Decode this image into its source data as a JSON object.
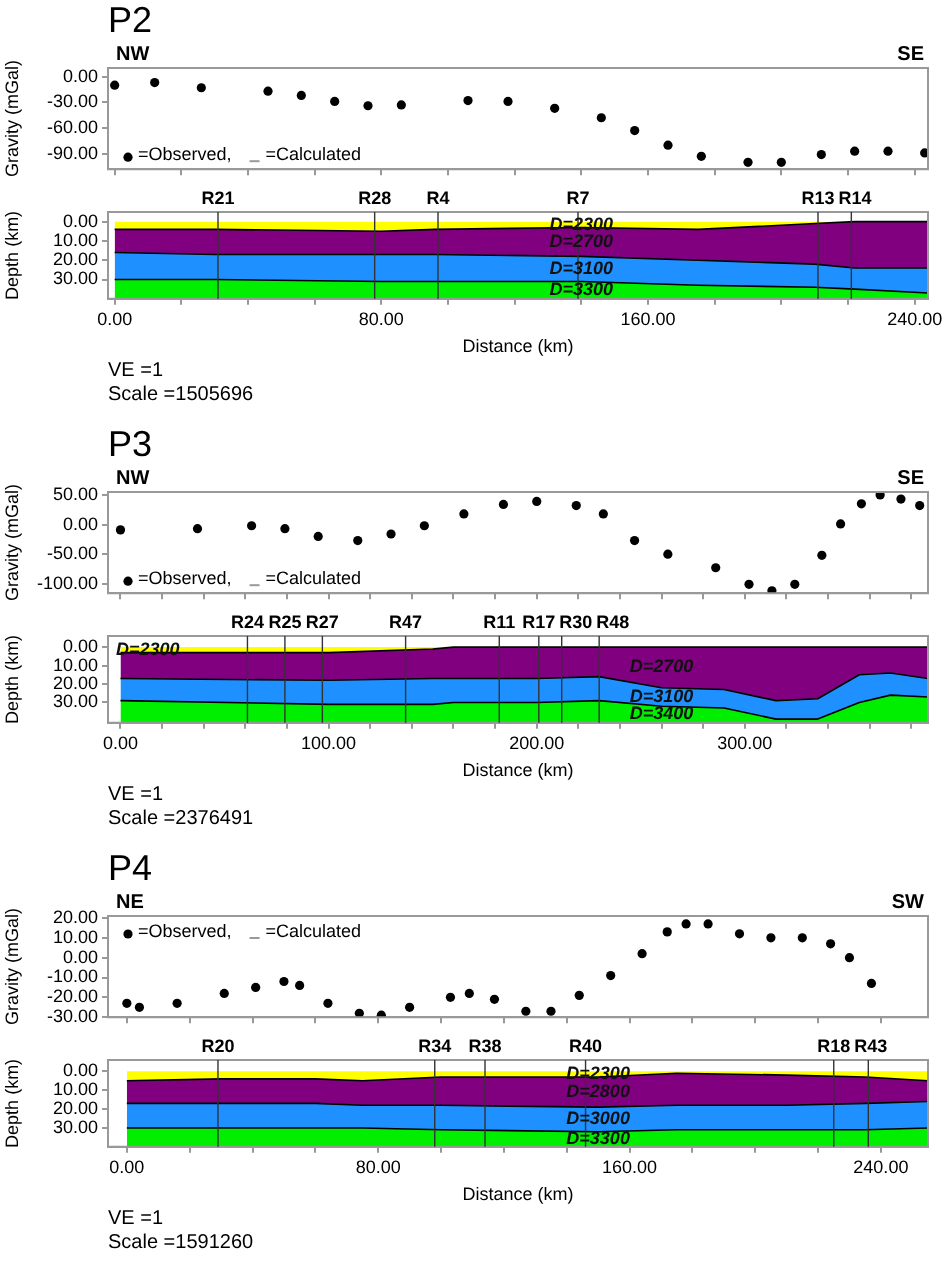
{
  "chart_data": [
    {
      "type": "scatter",
      "title": "P2",
      "ylabel": "Gravity (mGal)",
      "annotations": [
        "NW",
        "SE",
        "=Calculated"
      ],
      "x": [
        0,
        12,
        26,
        46,
        56,
        66,
        76,
        86,
        106,
        118,
        132,
        146,
        156,
        166,
        176,
        190,
        200,
        212,
        222,
        232,
        243
      ],
      "series": [
        {
          "name": "=Observed,",
          "color": "#000000",
          "values": [
            -10,
            -7,
            -13,
            -17,
            -22,
            -29,
            -34,
            -33,
            -28,
            -29,
            -37,
            -48,
            -63,
            -80,
            -93,
            -100,
            -100,
            -91,
            -87,
            -87,
            -89
          ]
        }
      ],
      "marker": "circle",
      "legend": "bottom left",
      "tick_labels": "y",
      "xlim": [
        -2,
        244
      ],
      "xticks": [
        {
          "value": 0,
          "label": null
        },
        {
          "value": 20,
          "label": null
        },
        {
          "value": 40,
          "label": null
        },
        {
          "value": 60,
          "label": null
        },
        {
          "value": 80,
          "label": null
        },
        {
          "value": 100,
          "label": null
        },
        {
          "value": 120,
          "label": null
        },
        {
          "value": 140,
          "label": null
        },
        {
          "value": 160,
          "label": null
        },
        {
          "value": 180,
          "label": null
        },
        {
          "value": 200,
          "label": null
        },
        {
          "value": 220,
          "label": null
        },
        {
          "value": 240,
          "label": null
        }
      ],
      "ylim": [
        -108,
        10
      ],
      "yticks": [
        {
          "value": 0,
          "label": "0.00"
        },
        {
          "value": -30,
          "label": "-30.00"
        },
        {
          "value": -60,
          "label": "-60.00"
        },
        {
          "value": -90,
          "label": "-90.00"
        }
      ]
    },
    {
      "type": "area",
      "stacked": true,
      "xlabel": "Distance (km)",
      "ylabel": "Depth (km)",
      "annotations": [
        "VE =1",
        "Scale =1505696"
      ],
      "x": [
        0,
        30,
        80,
        96,
        140,
        175,
        210,
        222,
        244
      ],
      "series": [
        {
          "name": "D=2300",
          "color": "#ffff00",
          "values": [
            4,
            4,
            5,
            4,
            3,
            4,
            1,
            0,
            0
          ]
        },
        {
          "name": "D=2700",
          "color": "#800080",
          "values": [
            12,
            13,
            12,
            13,
            15,
            16,
            21,
            24,
            24
          ]
        },
        {
          "name": "D=3100",
          "color": "#1e90ff",
          "values": [
            14,
            13,
            14,
            14,
            13,
            13,
            12,
            11,
            13
          ]
        },
        {
          "name": "D=3300",
          "color": "#00ee00",
          "values": [
            10,
            10,
            9,
            9,
            9,
            7,
            6,
            5,
            3
          ]
        }
      ],
      "xlim": [
        -2,
        244
      ],
      "xticks": [
        {
          "value": 0,
          "label": "0.00"
        },
        {
          "value": 20,
          "label": null
        },
        {
          "value": 40,
          "label": null
        },
        {
          "value": 60,
          "label": null
        },
        {
          "value": 80,
          "label": "80.00"
        },
        {
          "value": 100,
          "label": null
        },
        {
          "value": 120,
          "label": null
        },
        {
          "value": 140,
          "label": null
        },
        {
          "value": 160,
          "label": "160.00"
        },
        {
          "value": 180,
          "label": null
        },
        {
          "value": 200,
          "label": null
        },
        {
          "value": 220,
          "label": null
        },
        {
          "value": 240,
          "label": "240.00"
        }
      ],
      "ylim": [
        40,
        -5
      ],
      "yticks": [
        {
          "value": 0,
          "label": "0.00"
        },
        {
          "value": 10,
          "label": "10.00"
        },
        {
          "value": 20,
          "label": "20.00"
        },
        {
          "value": 30,
          "label": "30.00"
        }
      ],
      "ref_lines": [
        {
          "axis": "x",
          "value": 31,
          "label": "R21",
          "color": "#333333"
        },
        {
          "axis": "x",
          "value": 78,
          "label": "R28",
          "color": "#333333"
        },
        {
          "axis": "x",
          "value": 97,
          "label": "R4",
          "color": "#333333"
        },
        {
          "axis": "x",
          "value": 139,
          "label": "R7",
          "color": "#333333"
        },
        {
          "axis": "x",
          "value": 211,
          "label": "R13",
          "color": "#333333"
        },
        {
          "axis": "x",
          "value": 221,
          "label": "R14",
          "color": "#333333"
        }
      ]
    },
    {
      "type": "scatter",
      "title": "P3",
      "ylabel": "Gravity (mGal)",
      "annotations": [
        "NW",
        "SE",
        "=Calculated"
      ],
      "x": [
        0,
        37,
        63,
        79,
        95,
        114,
        130,
        146,
        165,
        184,
        200,
        219,
        232,
        247,
        263,
        286,
        302,
        313,
        324,
        337,
        346,
        356,
        365,
        375,
        384
      ],
      "series": [
        {
          "name": "=Observed,",
          "color": "#000000",
          "values": [
            -9,
            -7,
            -2,
            -7,
            -20,
            -27,
            -16,
            -2,
            18,
            34,
            39,
            32,
            18,
            -27,
            -50,
            -73,
            -101,
            -112,
            -101,
            -52,
            1,
            35,
            50,
            43,
            32
          ]
        }
      ],
      "marker": "circle",
      "legend": "bottom left",
      "tick_labels": "y",
      "xlim": [
        -6,
        388
      ],
      "xticks": [
        {
          "value": 0,
          "label": null
        },
        {
          "value": 20,
          "label": null
        },
        {
          "value": 40,
          "label": null
        },
        {
          "value": 60,
          "label": null
        },
        {
          "value": 80,
          "label": null
        },
        {
          "value": 100,
          "label": null
        },
        {
          "value": 120,
          "label": null
        },
        {
          "value": 140,
          "label": null
        },
        {
          "value": 160,
          "label": null
        },
        {
          "value": 180,
          "label": null
        },
        {
          "value": 200,
          "label": null
        },
        {
          "value": 220,
          "label": null
        },
        {
          "value": 240,
          "label": null
        },
        {
          "value": 260,
          "label": null
        },
        {
          "value": 280,
          "label": null
        },
        {
          "value": 300,
          "label": null
        },
        {
          "value": 320,
          "label": null
        },
        {
          "value": 340,
          "label": null
        },
        {
          "value": 360,
          "label": null
        },
        {
          "value": 380,
          "label": null
        }
      ],
      "ylim": [
        -116,
        55
      ],
      "yticks": [
        {
          "value": 50,
          "label": "50.00"
        },
        {
          "value": 0,
          "label": "0.00"
        },
        {
          "value": -50,
          "label": "-50.00"
        },
        {
          "value": -100,
          "label": "-100.00"
        }
      ]
    },
    {
      "type": "area",
      "stacked": true,
      "xlabel": "Distance (km)",
      "ylabel": "Depth (km)",
      "annotations": [
        "VE =1",
        "Scale =2376491"
      ],
      "x": [
        0,
        100,
        150,
        160,
        200,
        230,
        260,
        290,
        315,
        335,
        355,
        370,
        388
      ],
      "series": [
        {
          "name": "D=2300",
          "color": "#ffff00",
          "values": [
            3,
            3,
            1,
            0,
            0,
            0,
            0,
            0,
            0,
            0,
            0,
            0,
            0
          ]
        },
        {
          "name": "D=2700",
          "color": "#800080",
          "values": [
            14,
            15,
            16,
            17,
            17,
            16,
            22,
            23,
            29,
            28,
            15,
            14,
            17
          ]
        },
        {
          "name": "D=3100",
          "color": "#1e90ff",
          "values": [
            12,
            13,
            14,
            13,
            13,
            13,
            10,
            10,
            10,
            11,
            15,
            12,
            10
          ]
        },
        {
          "name": "D=3400",
          "color": "#00ee00",
          "values": [
            12,
            10,
            10,
            11,
            11,
            12,
            9,
            8,
            2,
            2,
            11,
            15,
            14
          ]
        }
      ],
      "xlim": [
        -6,
        388
      ],
      "xticks": [
        {
          "value": 0,
          "label": "0.00"
        },
        {
          "value": 20,
          "label": null
        },
        {
          "value": 40,
          "label": null
        },
        {
          "value": 60,
          "label": null
        },
        {
          "value": 80,
          "label": null
        },
        {
          "value": 100,
          "label": "100.00"
        },
        {
          "value": 120,
          "label": null
        },
        {
          "value": 140,
          "label": null
        },
        {
          "value": 160,
          "label": null
        },
        {
          "value": 180,
          "label": null
        },
        {
          "value": 200,
          "label": "200.00"
        },
        {
          "value": 220,
          "label": null
        },
        {
          "value": 240,
          "label": null
        },
        {
          "value": 260,
          "label": null
        },
        {
          "value": 280,
          "label": null
        },
        {
          "value": 300,
          "label": "300.00"
        },
        {
          "value": 320,
          "label": null
        },
        {
          "value": 340,
          "label": null
        },
        {
          "value": 360,
          "label": null
        },
        {
          "value": 380,
          "label": null
        }
      ],
      "ylim": [
        41,
        -6
      ],
      "yticks": [
        {
          "value": 0,
          "label": "0.00"
        },
        {
          "value": 10,
          "label": "10.00"
        },
        {
          "value": 20,
          "label": "20.00"
        },
        {
          "value": 30,
          "label": "30.00"
        }
      ],
      "ref_lines": [
        {
          "axis": "x",
          "value": 61,
          "label": "R24",
          "color": "#333333"
        },
        {
          "axis": "x",
          "value": 79,
          "label": "R25",
          "color": "#333333"
        },
        {
          "axis": "x",
          "value": 97,
          "label": "R27",
          "color": "#333333"
        },
        {
          "axis": "x",
          "value": 137,
          "label": "R47",
          "color": "#333333"
        },
        {
          "axis": "x",
          "value": 182,
          "label": "R11",
          "color": "#333333"
        },
        {
          "axis": "x",
          "value": 201,
          "label": "R17",
          "color": "#333333"
        },
        {
          "axis": "x",
          "value": 212,
          "label": "R30",
          "color": "#333333"
        },
        {
          "axis": "x",
          "value": 230,
          "label": "R48",
          "color": "#333333"
        }
      ]
    },
    {
      "type": "scatter",
      "title": "P4",
      "ylabel": "Gravity (mGal)",
      "annotations": [
        "NE",
        "SW",
        "=Calculated"
      ],
      "x": [
        0,
        4,
        16,
        31,
        41,
        50,
        55,
        64,
        74,
        81,
        90,
        103,
        109,
        117,
        127,
        135,
        144,
        154,
        164,
        172,
        178,
        185,
        195,
        205,
        215,
        224,
        230,
        237
      ],
      "series": [
        {
          "name": "=Observed,",
          "color": "#000000",
          "values": [
            -23,
            -25,
            -23,
            -18,
            -15,
            -12,
            -14,
            -23,
            -28,
            -29,
            -25,
            -20,
            -18,
            -21,
            -27,
            -27,
            -19,
            -9,
            2,
            13,
            17,
            17,
            12,
            10,
            10,
            7,
            0,
            -13
          ]
        }
      ],
      "marker": "circle",
      "legend": "top left",
      "tick_labels": "y",
      "xlim": [
        -6,
        255
      ],
      "xticks": [
        {
          "value": 0,
          "label": null
        },
        {
          "value": 20,
          "label": null
        },
        {
          "value": 40,
          "label": null
        },
        {
          "value": 60,
          "label": null
        },
        {
          "value": 80,
          "label": null
        },
        {
          "value": 100,
          "label": null
        },
        {
          "value": 120,
          "label": null
        },
        {
          "value": 140,
          "label": null
        },
        {
          "value": 160,
          "label": null
        },
        {
          "value": 180,
          "label": null
        },
        {
          "value": 200,
          "label": null
        },
        {
          "value": 220,
          "label": null
        },
        {
          "value": 240,
          "label": null
        }
      ],
      "ylim": [
        -30,
        21
      ],
      "yticks": [
        {
          "value": 20,
          "label": "20.00"
        },
        {
          "value": 10,
          "label": "10.00"
        },
        {
          "value": 0,
          "label": "0.00"
        },
        {
          "value": -10,
          "label": "-10.00"
        },
        {
          "value": -20,
          "label": "-20.00"
        },
        {
          "value": -30,
          "label": "-30.00"
        }
      ]
    },
    {
      "type": "area",
      "stacked": true,
      "xlabel": "Distance (km)",
      "ylabel": "Depth (km)",
      "annotations": [
        "VE =1",
        "Scale =1591260"
      ],
      "x": [
        0,
        30,
        60,
        75,
        100,
        150,
        175,
        210,
        235,
        255
      ],
      "series": [
        {
          "name": "D=2300",
          "color": "#ffff00",
          "values": [
            5,
            4,
            4,
            5,
            3,
            3,
            1,
            2,
            3,
            5
          ]
        },
        {
          "name": "D=2800",
          "color": "#800080",
          "values": [
            12,
            13,
            13,
            13,
            15,
            16,
            17,
            16,
            14,
            11
          ]
        },
        {
          "name": "D=3000",
          "color": "#1e90ff",
          "values": [
            13,
            13,
            13,
            12,
            13,
            13,
            13,
            13,
            14,
            14
          ]
        },
        {
          "name": "D=3300",
          "color": "#00ee00",
          "values": [
            10,
            10,
            10,
            10,
            9,
            8,
            9,
            9,
            9,
            10
          ]
        }
      ],
      "xlim": [
        -6,
        255
      ],
      "xticks": [
        {
          "value": 0,
          "label": "0.00"
        },
        {
          "value": 20,
          "label": null
        },
        {
          "value": 40,
          "label": null
        },
        {
          "value": 60,
          "label": null
        },
        {
          "value": 80,
          "label": "80.00"
        },
        {
          "value": 100,
          "label": null
        },
        {
          "value": 120,
          "label": null
        },
        {
          "value": 140,
          "label": null
        },
        {
          "value": 160,
          "label": "160.00"
        },
        {
          "value": 180,
          "label": null
        },
        {
          "value": 200,
          "label": null
        },
        {
          "value": 220,
          "label": null
        },
        {
          "value": 240,
          "label": "240.00"
        }
      ],
      "ylim": [
        40,
        -6
      ],
      "yticks": [
        {
          "value": 0,
          "label": "0.00"
        },
        {
          "value": 10,
          "label": "10.00"
        },
        {
          "value": 20,
          "label": "20.00"
        },
        {
          "value": 30,
          "label": "30.00"
        }
      ],
      "ref_lines": [
        {
          "axis": "x",
          "value": 29,
          "label": "R20",
          "color": "#333333"
        },
        {
          "axis": "x",
          "value": 98,
          "label": "R34",
          "color": "#333333"
        },
        {
          "axis": "x",
          "value": 114,
          "label": "R38",
          "color": "#333333"
        },
        {
          "axis": "x",
          "value": 146,
          "label": "R40",
          "color": "#333333"
        },
        {
          "axis": "x",
          "value": 225,
          "label": "R18",
          "color": "#333333"
        },
        {
          "axis": "x",
          "value": 236,
          "label": "R43",
          "color": "#333333"
        }
      ]
    }
  ]
}
